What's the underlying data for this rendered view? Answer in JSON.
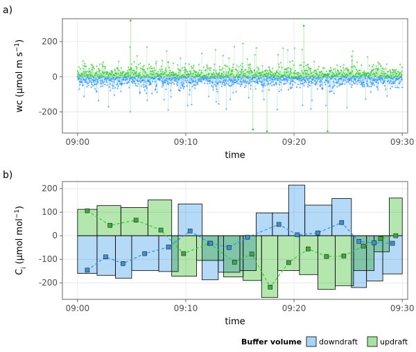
{
  "figure": {
    "colors": {
      "downdraft": "#1E90FF",
      "updraft": "#2ECC2E",
      "downdraft_fill": "#A8D4F7",
      "updraft_fill": "#A7E3A0",
      "downdraft_point": "#3A8FD6",
      "updraft_point": "#3FA83F",
      "axis": "#666666",
      "grid": "#E6E6E6"
    },
    "legend": {
      "title": "Buffer volume",
      "items": [
        {
          "label": "downdraft",
          "color_key": "downdraft_fill"
        },
        {
          "label": "updraft",
          "color_key": "updraft_fill"
        }
      ],
      "placement": "bottom-right"
    }
  },
  "chart_data": [
    {
      "type": "scatter",
      "panel_label": "a)",
      "xlabel": "time",
      "ylabel_main": "wc (μmol m s",
      "ylabel_sup": "−1",
      "ylabel_tail": ")",
      "x_ticks": [
        "09:00",
        "09:10",
        "09:20",
        "09:30"
      ],
      "x_tick_minutes": [
        0,
        10,
        20,
        30
      ],
      "xlim_minutes": [
        -1.4,
        30.5
      ],
      "y_ticks": [
        200,
        0,
        -200
      ],
      "ylim": [
        -320,
        330
      ],
      "series": [
        {
          "name": "downdraft",
          "color_key": "downdraft",
          "sign": -1,
          "typical_amplitude": 55,
          "extreme_amplitude": 200
        },
        {
          "name": "updraft",
          "color_key": "updraft",
          "sign": 1,
          "typical_amplitude": 50,
          "extreme_amplitude": 180
        }
      ],
      "notable_points": [
        {
          "minute": 4.9,
          "value": 320
        },
        {
          "minute": 20.9,
          "value": 290
        },
        {
          "minute": 17.5,
          "value": -310
        },
        {
          "minute": 16.2,
          "value": -300
        },
        {
          "minute": 23.1,
          "value": -310
        }
      ]
    },
    {
      "type": "bar",
      "panel_label": "b)",
      "xlabel": "time",
      "ylabel_main": "C",
      "ylabel_sub": "i",
      "ylabel_mid": " (μmol mol",
      "ylabel_sup": "−1",
      "ylabel_tail": ")",
      "x_ticks": [
        "09:00",
        "09:10",
        "09:20",
        "09:30"
      ],
      "x_tick_minutes": [
        0,
        10,
        20,
        30
      ],
      "xlim_minutes": [
        -1.4,
        30.5
      ],
      "y_ticks": [
        200,
        100,
        0,
        -100,
        -200
      ],
      "ylim": [
        -270,
        230
      ],
      "downdraft_bars": [
        {
          "start": 0.0,
          "end": 1.8,
          "value": -160
        },
        {
          "start": 1.8,
          "end": 3.5,
          "value": -168
        },
        {
          "start": 3.5,
          "end": 5.0,
          "value": -180
        },
        {
          "start": 5.0,
          "end": 7.5,
          "value": -148
        },
        {
          "start": 7.5,
          "end": 9.3,
          "value": -152
        },
        {
          "start": 9.3,
          "end": 11.5,
          "value": 135
        },
        {
          "start": 11.5,
          "end": 13.0,
          "value": -187
        },
        {
          "start": 13.0,
          "end": 15.0,
          "value": -155
        },
        {
          "start": 15.0,
          "end": 16.5,
          "value": -148
        },
        {
          "start": 16.5,
          "end": 18.0,
          "value": 97
        },
        {
          "start": 18.0,
          "end": 19.5,
          "value": 97
        },
        {
          "start": 19.5,
          "end": 21.0,
          "value": 215
        },
        {
          "start": 21.0,
          "end": 23.5,
          "value": 130
        },
        {
          "start": 23.5,
          "end": 25.3,
          "value": 158
        },
        {
          "start": 25.3,
          "end": 26.7,
          "value": -220
        },
        {
          "start": 26.7,
          "end": 28.2,
          "value": -192
        },
        {
          "start": 28.2,
          "end": 30.0,
          "value": -162
        }
      ],
      "downdraft_points": [
        {
          "minute": 0.9,
          "value": -146
        },
        {
          "minute": 2.6,
          "value": -90
        },
        {
          "minute": 4.2,
          "value": -118
        },
        {
          "minute": 6.2,
          "value": -76
        },
        {
          "minute": 8.4,
          "value": -48
        },
        {
          "minute": 10.4,
          "value": 20
        },
        {
          "minute": 12.3,
          "value": -32
        },
        {
          "minute": 14.0,
          "value": -50
        },
        {
          "minute": 15.7,
          "value": -6
        },
        {
          "minute": 18.6,
          "value": 48
        },
        {
          "minute": 20.3,
          "value": 4
        },
        {
          "minute": 22.2,
          "value": 12
        },
        {
          "minute": 24.4,
          "value": 56
        },
        {
          "minute": 26.0,
          "value": -24
        },
        {
          "minute": 27.4,
          "value": -30
        },
        {
          "minute": 29.1,
          "value": -32
        }
      ],
      "updraft_bars": [
        {
          "start": 0.0,
          "end": 1.8,
          "value": 112
        },
        {
          "start": 1.8,
          "end": 4.0,
          "value": 128
        },
        {
          "start": 4.0,
          "end": 6.5,
          "value": 120
        },
        {
          "start": 6.5,
          "end": 8.7,
          "value": 152
        },
        {
          "start": 8.7,
          "end": 11.0,
          "value": -172
        },
        {
          "start": 11.0,
          "end": 13.5,
          "value": -105
        },
        {
          "start": 13.5,
          "end": 15.3,
          "value": -175
        },
        {
          "start": 15.3,
          "end": 17.0,
          "value": -190
        },
        {
          "start": 17.0,
          "end": 18.5,
          "value": -262
        },
        {
          "start": 18.5,
          "end": 20.5,
          "value": -148
        },
        {
          "start": 20.5,
          "end": 22.2,
          "value": -165
        },
        {
          "start": 22.2,
          "end": 23.8,
          "value": -228
        },
        {
          "start": 23.8,
          "end": 25.5,
          "value": -212
        },
        {
          "start": 25.5,
          "end": 27.4,
          "value": -148
        },
        {
          "start": 27.4,
          "end": 28.8,
          "value": -68
        },
        {
          "start": 28.8,
          "end": 30.0,
          "value": 160
        }
      ],
      "updraft_points": [
        {
          "minute": 0.9,
          "value": 106
        },
        {
          "minute": 3.0,
          "value": 44
        },
        {
          "minute": 5.4,
          "value": 66
        },
        {
          "minute": 7.7,
          "value": 24
        },
        {
          "minute": 9.8,
          "value": -76
        },
        {
          "minute": 12.2,
          "value": -32
        },
        {
          "minute": 14.5,
          "value": -112
        },
        {
          "minute": 16.1,
          "value": -78
        },
        {
          "minute": 17.8,
          "value": -218
        },
        {
          "minute": 19.5,
          "value": -114
        },
        {
          "minute": 21.3,
          "value": -56
        },
        {
          "minute": 23.0,
          "value": -88
        },
        {
          "minute": 24.6,
          "value": -86
        },
        {
          "minute": 26.4,
          "value": -44
        },
        {
          "minute": 28.0,
          "value": -12
        },
        {
          "minute": 29.4,
          "value": 0
        }
      ]
    }
  ]
}
